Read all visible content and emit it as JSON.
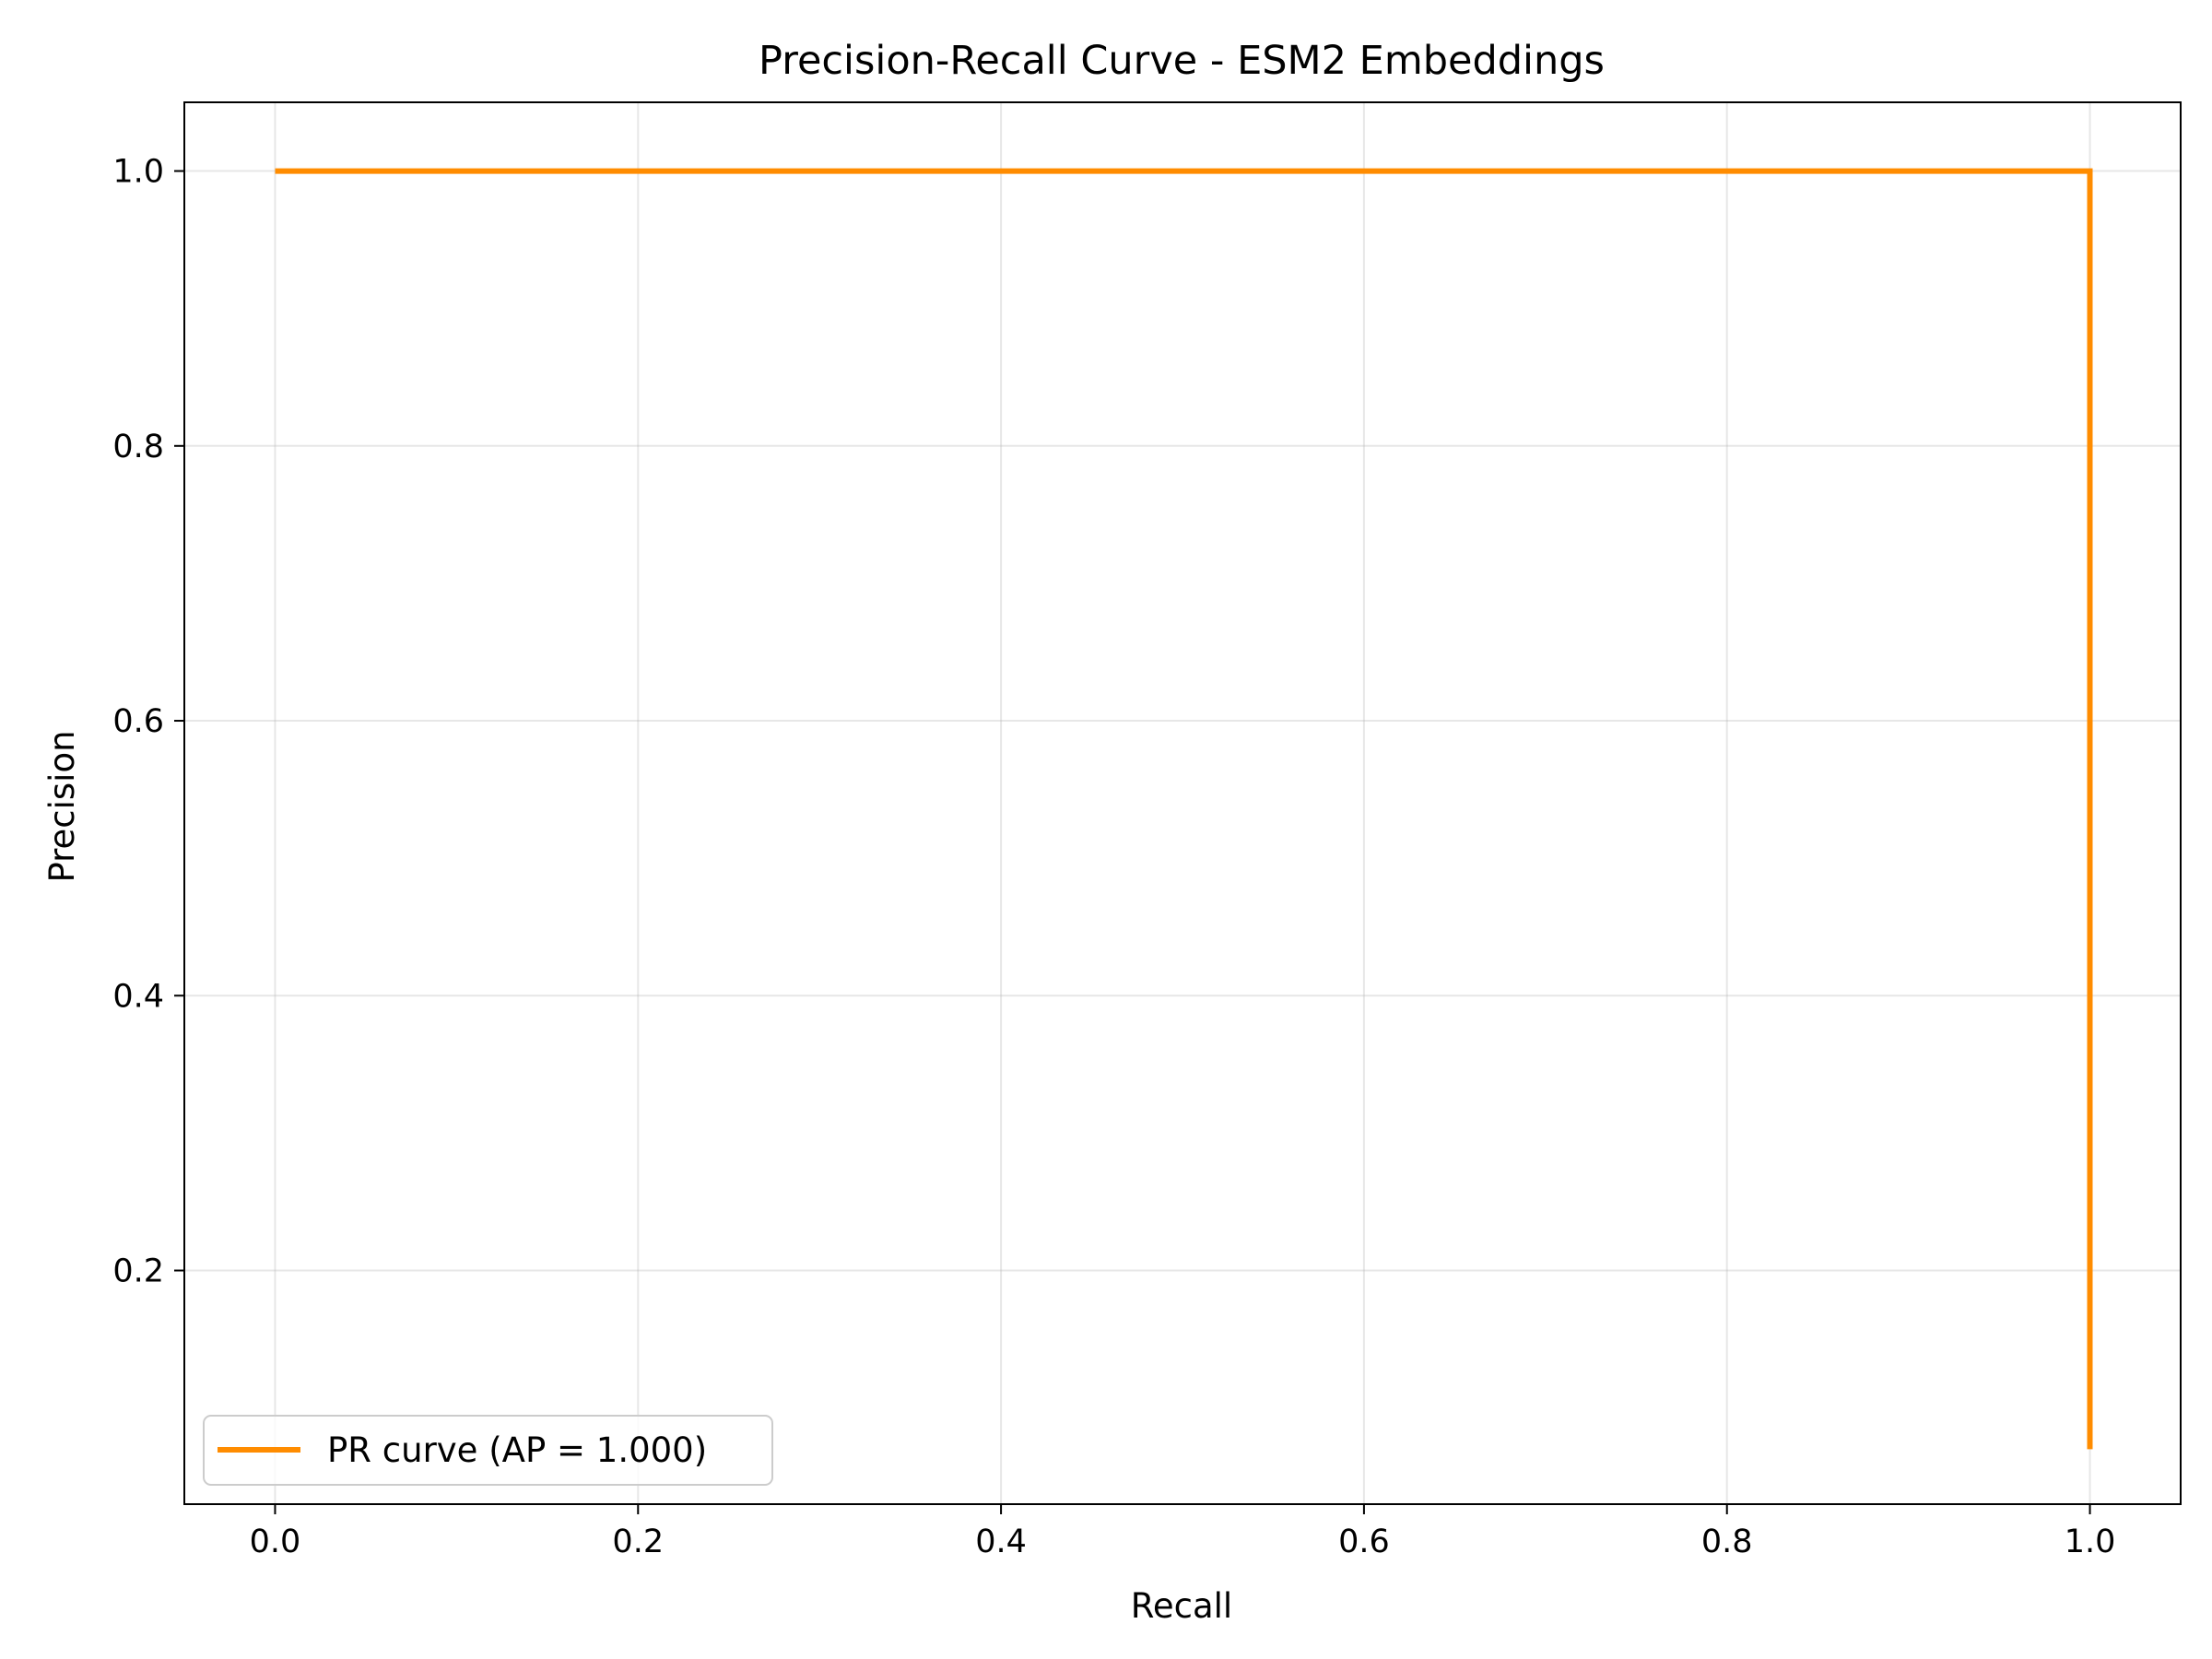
{
  "chart_data": {
    "type": "line",
    "title": "Precision-Recall Curve - ESM2 Embeddings",
    "xlabel": "Recall",
    "ylabel": "Precision",
    "xlim": [
      -0.05,
      1.05
    ],
    "ylim": [
      0.03,
      1.05
    ],
    "xticks": [
      0.0,
      0.2,
      0.4,
      0.6,
      0.8,
      1.0
    ],
    "xtick_labels": [
      "0.0",
      "0.2",
      "0.4",
      "0.6",
      "0.8",
      "1.0"
    ],
    "yticks": [
      0.2,
      0.4,
      0.6,
      0.8,
      1.0
    ],
    "ytick_labels": [
      "0.2",
      "0.4",
      "0.6",
      "0.8",
      "1.0"
    ],
    "grid": true,
    "legend_position": "lower-left",
    "series": [
      {
        "name": "PR curve (AP = 1.000)",
        "color": "#ff8c00",
        "x": [
          0.0,
          1.0,
          1.0
        ],
        "y": [
          1.0,
          1.0,
          0.07
        ]
      }
    ]
  }
}
